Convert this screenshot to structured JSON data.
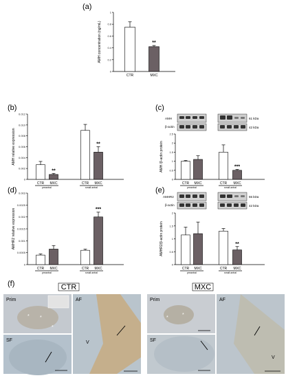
{
  "panel_labels": {
    "a": "(a)",
    "b": "(b)",
    "c": "(c)",
    "d": "(d)",
    "e": "(e)",
    "f": "(f)"
  },
  "colors": {
    "ctr": "#ffffff",
    "mxc": "#6b6064",
    "stroke": "#000000"
  },
  "chart_data": [
    {
      "id": "a",
      "type": "bar",
      "categories": [
        "CTR",
        "MXC"
      ],
      "values": [
        0.75,
        0.42
      ],
      "errors": [
        0.09,
        0.02
      ],
      "ylabel": "AMH concentration (ng/mL)",
      "ylim": [
        0,
        1
      ],
      "yticks": [
        "0",
        "0.2",
        "0.4",
        "0.6",
        "0.8",
        "1"
      ],
      "significance": [
        "",
        "**"
      ]
    },
    {
      "id": "b",
      "type": "bar",
      "groups": [
        "preantral",
        "small antral"
      ],
      "categories": [
        "CTR",
        "MXC",
        "CTR",
        "MXC"
      ],
      "values": [
        0.0027,
        0.0009,
        0.009,
        0.005
      ],
      "errors": [
        0.0006,
        0.0002,
        0.0011,
        0.001
      ],
      "ylabel": "AMH relative expression",
      "ylim": [
        0,
        0.012
      ],
      "yticks": [
        "0",
        "0.002",
        "0.004",
        "0.006",
        "0.008",
        "0.010",
        "0.012"
      ],
      "significance": [
        "",
        "**",
        "",
        "**"
      ]
    },
    {
      "id": "c",
      "type": "bar",
      "groups": [
        "preantral",
        "small antral"
      ],
      "categories": [
        "CTR",
        "MXC",
        "CTR",
        "MXC"
      ],
      "values": [
        1.0,
        1.1,
        1.5,
        0.5
      ],
      "errors": [
        0.04,
        0.2,
        0.4,
        0.05
      ],
      "ylabel": "AMH /β-actin protein",
      "ylim": [
        0,
        2.5
      ],
      "yticks": [
        "0",
        "0.5",
        "1",
        "1.5",
        "2",
        "2.5"
      ],
      "significance": [
        "",
        "",
        "",
        "***"
      ],
      "blot_labels": [
        "AMH",
        "β-actin"
      ],
      "kda": [
        "61 kDa",
        "42 kDa"
      ]
    },
    {
      "id": "d",
      "type": "bar",
      "groups": [
        "preantral",
        "small antral"
      ],
      "categories": [
        "CTR",
        "MXC",
        "CTR",
        "MXC"
      ],
      "values": [
        0.0004,
        0.00065,
        0.0006,
        0.002
      ],
      "errors": [
        5e-05,
        0.00015,
        5e-05,
        0.0002
      ],
      "ylabel": "AMHR2 relative expression",
      "ylim": [
        0,
        0.003
      ],
      "yticks": [
        "0",
        "0.0005",
        "0.001",
        "0.0015",
        "0.002",
        "0.0025",
        "0.003"
      ],
      "significance": [
        "",
        "",
        "",
        "***"
      ]
    },
    {
      "id": "e",
      "type": "bar",
      "groups": [
        "preantral",
        "small antral"
      ],
      "categories": [
        "CTR",
        "MXC",
        "CTR",
        "MXC"
      ],
      "values": [
        1.15,
        1.2,
        1.3,
        0.57
      ],
      "errors": [
        0.3,
        0.45,
        0.1,
        0.13
      ],
      "ylabel": "AMHR2/β-actin protein",
      "ylim": [
        0,
        2
      ],
      "yticks": [
        "0",
        "0.5",
        "1",
        "1.5",
        "2"
      ],
      "significance": [
        "",
        "",
        "",
        "**"
      ],
      "blot_labels": [
        "AMHR2",
        "β-actin"
      ],
      "kda": [
        "55 kDa",
        "42 kDa"
      ]
    }
  ],
  "histology": {
    "groups": [
      "CTR",
      "MXC"
    ],
    "ctr_labels": {
      "prim": "Prim",
      "af": "AF",
      "sf": "SF"
    },
    "mxc_labels": {
      "prim": "Prim",
      "af": "AF",
      "sf": "SF"
    },
    "stars": [
      "*",
      "*",
      "*"
    ],
    "v_mark": "V"
  }
}
